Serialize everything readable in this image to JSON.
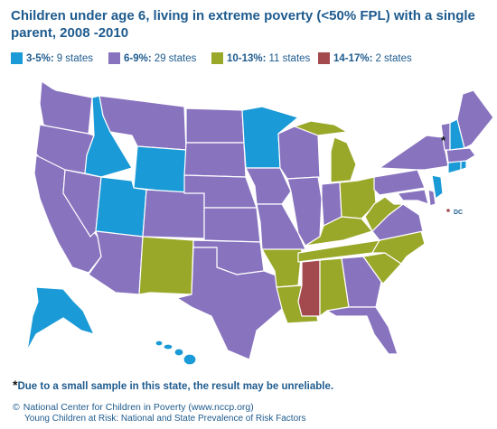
{
  "title": "Children under age 6, living in extreme poverty (<50% FPL) with a single parent, 2008 -2010",
  "colors": {
    "c1": "#1a9ad6",
    "c2": "#8873bf",
    "c3": "#9aa82a",
    "c4": "#a34a4f",
    "border": "#ffffff",
    "text": "#1e5b8e"
  },
  "legend": [
    {
      "pct": "3-5%:",
      "count": "9 states",
      "color": "#1a9ad6"
    },
    {
      "pct": "6-9%:",
      "count": "29 states",
      "color": "#8873bf"
    },
    {
      "pct": "10-13%:",
      "count": "11 states",
      "color": "#9aa82a"
    },
    {
      "pct": "14-17%:",
      "count": "2 states",
      "color": "#a34a4f"
    }
  ],
  "map": {
    "dc_label": "DC",
    "asterisk": "*"
  },
  "footnote": {
    "star": "*",
    "text": "Due to a small sample in this state, the result may be unreliable."
  },
  "credits": {
    "copyright": "©",
    "line1": "National Center for Children in Poverty (www.nccp.org)",
    "line2": "Young Children at Risk: National and State Prevalence of Risk Factors"
  }
}
